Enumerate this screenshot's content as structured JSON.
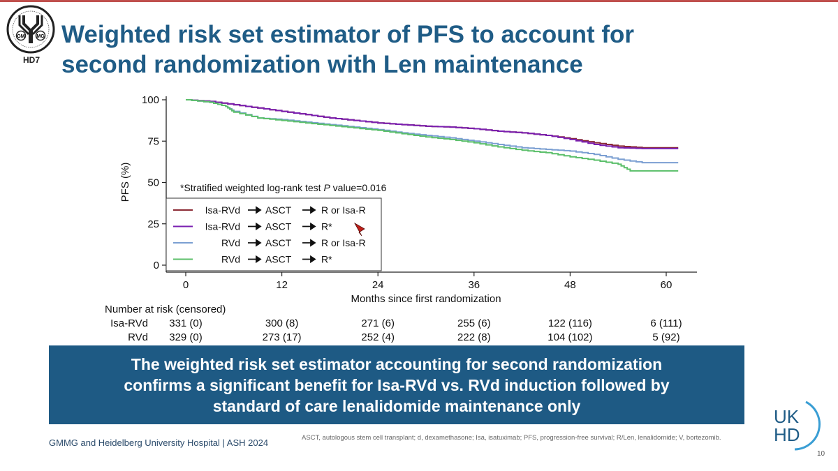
{
  "header": {
    "title_line1": "Weighted risk set estimator of PFS to account for",
    "title_line2": "second randomization with Len maintenance",
    "logo_letters_left": "GM",
    "logo_letters_right": "MG",
    "study_label": "HD7",
    "accent_color": "#1f5c86"
  },
  "chart_data": {
    "type": "line",
    "title": "",
    "xlabel": "Months since first randomization",
    "ylabel": "PFS (%)",
    "xlim": [
      0,
      62
    ],
    "ylim": [
      0,
      100
    ],
    "x_ticks": [
      0,
      12,
      24,
      36,
      48,
      60
    ],
    "y_ticks": [
      0,
      25,
      50,
      75,
      100
    ],
    "annotation": "*Stratified weighted log-rank test P value=0.016",
    "annotation_prefix": "*Stratified weighted log-rank test ",
    "annotation_p": "P",
    "annotation_suffix": " value=0.016",
    "grid": false,
    "legend_position": "bottom-left",
    "legend": [
      {
        "induction": "Isa-RVd",
        "arrow1": "ASCT",
        "arrow2": "R or Isa-R",
        "color": "#8b2a35"
      },
      {
        "induction": "Isa-RVd",
        "arrow1": "ASCT",
        "arrow2": "R*",
        "color": "#7a1fb0"
      },
      {
        "induction": "RVd",
        "arrow1": "ASCT",
        "arrow2": "R or Isa-R",
        "color": "#7b9fd2"
      },
      {
        "induction": "RVd",
        "arrow1": "ASCT",
        "arrow2": "R*",
        "color": "#5bbf6a"
      }
    ],
    "series": [
      {
        "name": "Isa-RVd → ASCT → R or Isa-R",
        "color": "#8b2a35",
        "x": [
          0,
          3,
          6,
          9,
          12,
          15,
          18,
          21,
          24,
          27,
          30,
          33,
          36,
          39,
          42,
          45,
          48,
          51,
          54,
          57,
          60,
          61.5
        ],
        "y": [
          100,
          99,
          97,
          95,
          93,
          91,
          89,
          87.5,
          86,
          85,
          84,
          83.5,
          82.5,
          81,
          80,
          78.5,
          76.5,
          74,
          72,
          71,
          71,
          71
        ]
      },
      {
        "name": "Isa-RVd → ASCT → R*",
        "color": "#7a1fb0",
        "x": [
          0,
          3,
          6,
          9,
          12,
          15,
          18,
          21,
          24,
          27,
          30,
          33,
          36,
          39,
          42,
          45,
          48,
          51,
          54,
          57,
          60,
          61.5
        ],
        "y": [
          100,
          99,
          97,
          95,
          93,
          91,
          89,
          87.5,
          86,
          85,
          84,
          83.5,
          82.5,
          81,
          80,
          78.5,
          76,
          73,
          71,
          70.5,
          70.5,
          70.5
        ]
      },
      {
        "name": "RVd → ASCT → R or Isa-R",
        "color": "#7b9fd2",
        "x": [
          0,
          3,
          5,
          6,
          9,
          12,
          15,
          18,
          21,
          24,
          27,
          30,
          33,
          36,
          39,
          42,
          45,
          48,
          51,
          54,
          57,
          60,
          61.5
        ],
        "y": [
          100,
          98.5,
          96,
          93,
          89,
          88,
          86.5,
          85,
          83.5,
          82,
          80,
          78.5,
          77,
          75,
          73,
          71,
          70,
          69,
          67,
          64,
          62,
          62,
          62
        ]
      },
      {
        "name": "RVd → ASCT → R*",
        "color": "#5bbf6a",
        "x": [
          0,
          3,
          5,
          6,
          9,
          12,
          15,
          18,
          21,
          24,
          27,
          30,
          33,
          36,
          39,
          42,
          45,
          48,
          51,
          54,
          55.5,
          57,
          60,
          61.5
        ],
        "y": [
          100,
          98.5,
          96,
          92.5,
          89,
          87.5,
          86,
          84.5,
          83,
          81.5,
          79.5,
          77.5,
          76,
          74,
          71.5,
          69.5,
          68,
          65.5,
          63.5,
          61,
          57,
          57,
          57,
          57
        ]
      }
    ]
  },
  "risk_table": {
    "header": "Number at risk (censored)",
    "rows": [
      {
        "label": "Isa-RVd",
        "values": [
          "331 (0)",
          "300 (8)",
          "271 (6)",
          "255 (6)",
          "122 (116)",
          "6 (111)"
        ]
      },
      {
        "label": "RVd",
        "values": [
          "329 (0)",
          "273 (17)",
          "252 (4)",
          "222 (8)",
          "104 (102)",
          "5 (92)"
        ]
      }
    ]
  },
  "banner": {
    "line1": "The weighted risk set estimator accounting for second randomization",
    "line2": "confirms a significant benefit for Isa-RVd vs. RVd induction followed by",
    "line3": "standard of care lenalidomide maintenance only",
    "background_color": "#1e5a84"
  },
  "footer": {
    "source": "GMMG and Heidelberg University Hospital | ASH 2024",
    "abbreviations": "ASCT, autologous stem cell transplant; d, dexamethasone; Isa, isatuximab; PFS, progression-free survival; R/Len, lenalidomide; V, bortezomib.",
    "logo_line1": "UK",
    "logo_line2": "HD",
    "page_number": "10"
  }
}
